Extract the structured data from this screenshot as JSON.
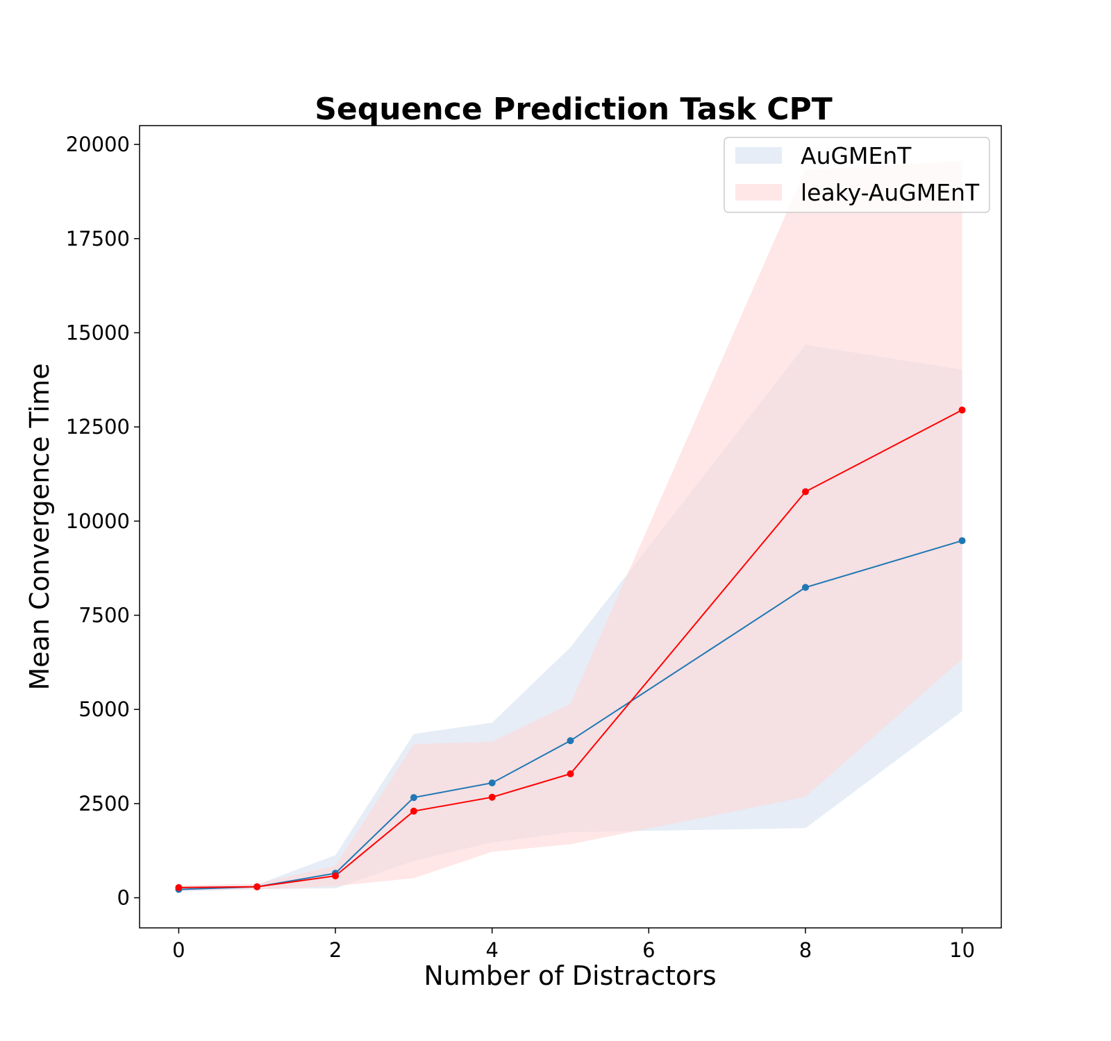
{
  "chart_data": {
    "type": "line",
    "title": "Sequence Prediction Task CPT",
    "xlabel": "Number of Distractors",
    "ylabel": "Mean Convergence Time",
    "xlim": [
      -0.5,
      10.5
    ],
    "ylim": [
      -800,
      20500
    ],
    "x": [
      0,
      1,
      2,
      3,
      4,
      5,
      8,
      10
    ],
    "xticks": [
      0,
      2,
      4,
      6,
      8,
      10
    ],
    "yticks": [
      0,
      2500,
      5000,
      7500,
      10000,
      12500,
      15000,
      17500,
      20000
    ],
    "grid": false,
    "legend_position": "top-right",
    "series": [
      {
        "name": "AuGMEnT",
        "color": "#1f77b4",
        "band_color": "#dce6f2",
        "values": [
          220,
          290,
          650,
          2660,
          3050,
          4170,
          8240,
          9480
        ],
        "lower": [
          160,
          230,
          250,
          980,
          1470,
          1740,
          1850,
          4950
        ],
        "upper": [
          290,
          350,
          1130,
          4350,
          4650,
          6650,
          14680,
          14020
        ]
      },
      {
        "name": "leaky-AuGMEnT",
        "color": "#ff0000",
        "band_color": "#ffd7d7",
        "values": [
          270,
          290,
          580,
          2300,
          2670,
          3290,
          10780,
          12950
        ],
        "lower": [
          200,
          220,
          310,
          520,
          1220,
          1420,
          2680,
          6340
        ],
        "upper": [
          330,
          370,
          850,
          4080,
          4140,
          5150,
          19330,
          19560
        ]
      }
    ]
  }
}
